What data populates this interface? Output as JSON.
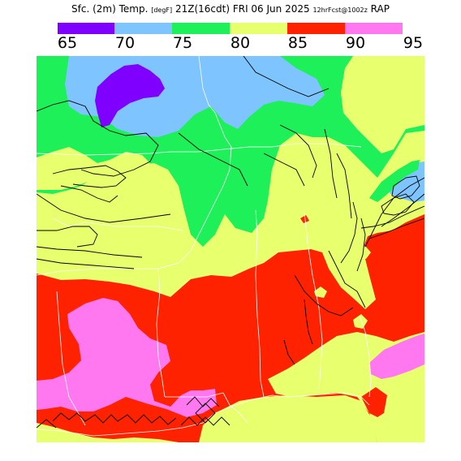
{
  "header": {
    "title_main": "Sfc. (2m) Temp.",
    "title_units": "[degF]",
    "title_time": "21Z(16cdt) FRI 06 Jun 2025",
    "title_run": "12hrFcst@1002z",
    "title_model": "RAP"
  },
  "legend": {
    "ticks": [
      "65",
      "70",
      "75",
      "80",
      "85",
      "90",
      "95"
    ],
    "bins": [
      {
        "from": 65,
        "to": 70,
        "color": "#8000ff"
      },
      {
        "from": 70,
        "to": 75,
        "color": "#7ec4ff"
      },
      {
        "from": 75,
        "to": 80,
        "color": "#1ef05a"
      },
      {
        "from": 80,
        "to": 85,
        "color": "#e8ff6e"
      },
      {
        "from": 85,
        "to": 90,
        "color": "#ff2200"
      },
      {
        "from": 90,
        "to": 95,
        "color": "#ff78f0"
      }
    ]
  },
  "colors": {
    "c65_70": "#8000ff",
    "c70_75": "#7ec4ff",
    "c75_80": "#1ef05a",
    "c80_85": "#e8ff6e",
    "c85_90": "#ff2200",
    "c90_95": "#ff78f0",
    "boundaries": "#ffffff",
    "contours": "#000000"
  }
}
